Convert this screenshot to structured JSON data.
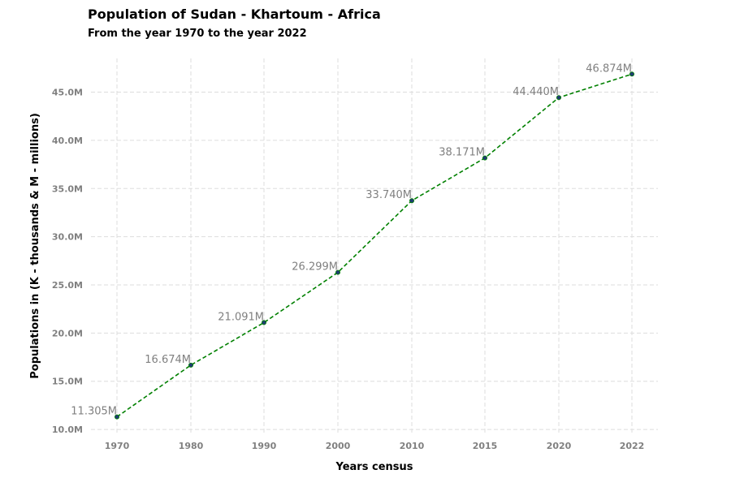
{
  "chart_data": {
    "type": "line",
    "title": "Population of Sudan - Khartoum - Africa",
    "subtitle": "From the year 1970 to the year 2022",
    "xlabel": "Years census",
    "ylabel": "Populations in (K - thousands & M - millions)",
    "categories": [
      "1970",
      "1980",
      "1990",
      "2000",
      "2010",
      "2015",
      "2020",
      "2022"
    ],
    "values": [
      11.305,
      16.674,
      21.091,
      26.299,
      33.74,
      38.171,
      44.44,
      46.874
    ],
    "data_labels": [
      "11.305M",
      "16.674M",
      "21.091M",
      "26.299M",
      "33.740M",
      "38.171M",
      "44.440M",
      "46.874M"
    ],
    "yticks": [
      10,
      15,
      20,
      25,
      30,
      35,
      40,
      45
    ],
    "ytick_labels": [
      "10.0M",
      "15.0M",
      "20.0M",
      "25.0M",
      "30.0M",
      "35.0M",
      "40.0M",
      "45.0M"
    ],
    "ylim": [
      9.5,
      48.5
    ],
    "grid": true,
    "line_color": "#008000",
    "marker_color": "#1f3b73"
  }
}
